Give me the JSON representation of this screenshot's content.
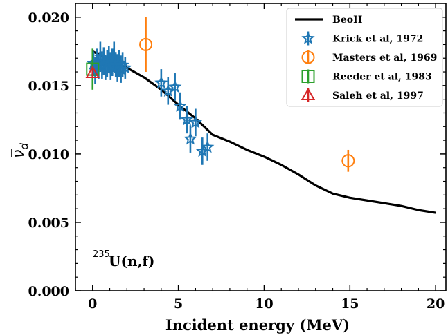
{
  "chart_data": {
    "type": "scatter",
    "xlabel": "Incident energy (MeV)",
    "ylabel_base": "ν",
    "ylabel_sub": "d",
    "xlim": [
      -1.0,
      20.6
    ],
    "ylim": [
      0.0,
      0.021
    ],
    "xticks": [
      0,
      5,
      10,
      15,
      20
    ],
    "xtick_labels": [
      "0",
      "5",
      "10",
      "15",
      "20"
    ],
    "yticks": [
      0.0,
      0.005,
      0.01,
      0.015,
      0.02
    ],
    "ytick_labels": [
      "0.000",
      "0.005",
      "0.010",
      "0.015",
      "0.020"
    ],
    "grid": false,
    "legend_position": "top-right",
    "annotation": {
      "mass": "235",
      "text": "U(n,f)"
    },
    "colors": {
      "model": "#000000",
      "krick": "#1f77b4",
      "masters": "#ff7f0e",
      "reeder": "#2ca02c",
      "saleh": "#d62728"
    },
    "series": [
      {
        "name": "BeoH",
        "kind": "line",
        "x": [
          0,
          1,
          2,
          3,
          4,
          5,
          6,
          7,
          8,
          9,
          10,
          11,
          12,
          13,
          14,
          15,
          16,
          17,
          18,
          19,
          20
        ],
        "y": [
          0.0175,
          0.0169,
          0.0163,
          0.0156,
          0.0147,
          0.0136,
          0.0126,
          0.0114,
          0.0109,
          0.0103,
          0.0098,
          0.0092,
          0.0085,
          0.0077,
          0.0071,
          0.0068,
          0.0066,
          0.0064,
          0.0062,
          0.0059,
          0.0057
        ]
      },
      {
        "name": "Krick et al, 1972",
        "kind": "scatter",
        "marker": "star",
        "x": [
          0.05,
          0.15,
          0.25,
          0.35,
          0.45,
          0.55,
          0.65,
          0.75,
          0.85,
          0.95,
          1.05,
          1.15,
          1.25,
          1.35,
          1.45,
          1.55,
          1.65,
          1.75,
          1.9,
          4.0,
          4.4,
          4.8,
          5.1,
          5.5,
          5.7,
          6.0,
          6.4,
          6.7
        ],
        "y": [
          0.0166,
          0.0161,
          0.0167,
          0.0164,
          0.0171,
          0.0165,
          0.0168,
          0.0163,
          0.0166,
          0.0169,
          0.0164,
          0.0167,
          0.0171,
          0.0165,
          0.0163,
          0.0166,
          0.0162,
          0.0165,
          0.0163,
          0.0152,
          0.0146,
          0.0149,
          0.0135,
          0.0125,
          0.0111,
          0.0123,
          0.0102,
          0.0105
        ],
        "yerr": [
          0.0009,
          0.001,
          0.001,
          0.0009,
          0.0011,
          0.001,
          0.001,
          0.0009,
          0.001,
          0.001,
          0.001,
          0.001,
          0.0011,
          0.0009,
          0.001,
          0.001,
          0.001,
          0.0009,
          0.0008,
          0.001,
          0.001,
          0.001,
          0.001,
          0.001,
          0.001,
          0.001,
          0.001,
          0.001
        ]
      },
      {
        "name": "Masters et al, 1969",
        "kind": "scatter",
        "marker": "circle",
        "x": [
          3.1,
          14.9
        ],
        "y": [
          0.018,
          0.0095
        ],
        "yerr": [
          0.002,
          0.0008
        ]
      },
      {
        "name": "Reeder et al, 1983",
        "kind": "scatter",
        "marker": "square",
        "x": [
          0.0
        ],
        "y": [
          0.0162
        ],
        "yerr": [
          0.0015
        ]
      },
      {
        "name": "Saleh et al, 1997",
        "kind": "scatter",
        "marker": "triangle",
        "x": [
          0.0
        ],
        "y": [
          0.0159
        ],
        "yerr": [
          0.0003
        ]
      }
    ]
  }
}
